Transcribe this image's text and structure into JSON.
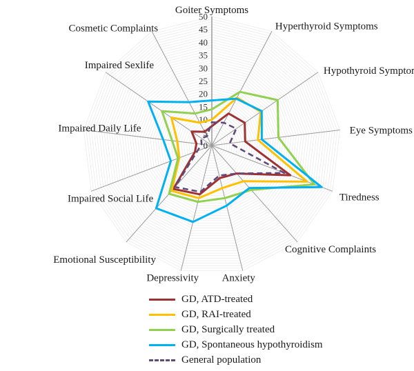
{
  "chart_data": {
    "type": "radar",
    "title": "",
    "axes": [
      "Goiter Symptoms",
      "Hyperthyroid Symptoms",
      "Hypothyroid Symptoms",
      "Eye Symptoms",
      "Tiredness",
      "Cognitive Complaints",
      "Anxiety",
      "Depressivity",
      "Emotional Susceptibility",
      "Impaired Social Life",
      "Impaired Daily Life",
      "Impaired Sexlife",
      "Cosmetic Complaints"
    ],
    "radial_axis": {
      "min": 0,
      "max": 50,
      "tick_step": 5,
      "tick_labels": [
        "0",
        "5",
        "10",
        "15",
        "20",
        "25",
        "30",
        "35",
        "40",
        "45",
        "50"
      ]
    },
    "grid": {
      "ring_step": 1,
      "spoke_color": "#9a9a9a",
      "ring_color": "#ebebeb"
    },
    "legend_position": "bottom",
    "series": [
      {
        "name": "GD, ATD-treated",
        "color": "#9E3132",
        "style": "solid",
        "values": [
          7.5,
          14,
          15.5,
          13,
          32.5,
          14.5,
          13,
          19.5,
          22.5,
          7,
          6,
          9.5,
          6
        ]
      },
      {
        "name": "GD, RAI-treated",
        "color": "#FFC000",
        "style": "solid",
        "values": [
          10,
          21,
          23,
          18,
          39.5,
          18.5,
          17,
          21,
          23.5,
          13.5,
          13.5,
          19,
          10
        ]
      },
      {
        "name": "GD, Surgically treated",
        "color": "#92D050",
        "style": "solid",
        "values": [
          14,
          23.5,
          31,
          26,
          42.5,
          23,
          21,
          22.5,
          25,
          14,
          15.5,
          23.5,
          14
        ]
      },
      {
        "name": "GD, Spontaneous hypothyroidism",
        "color": "#00B0F0",
        "style": "solid",
        "values": [
          17.5,
          20.5,
          23.5,
          19.5,
          45.5,
          22,
          24,
          30.5,
          32.5,
          17,
          19,
          30,
          19
        ]
      },
      {
        "name": "General population",
        "color": "#5F497A",
        "style": "dashed",
        "values": [
          9,
          10,
          11.5,
          7,
          30,
          14.5,
          12,
          18.5,
          21.5,
          6,
          4,
          5,
          4
        ]
      }
    ]
  }
}
